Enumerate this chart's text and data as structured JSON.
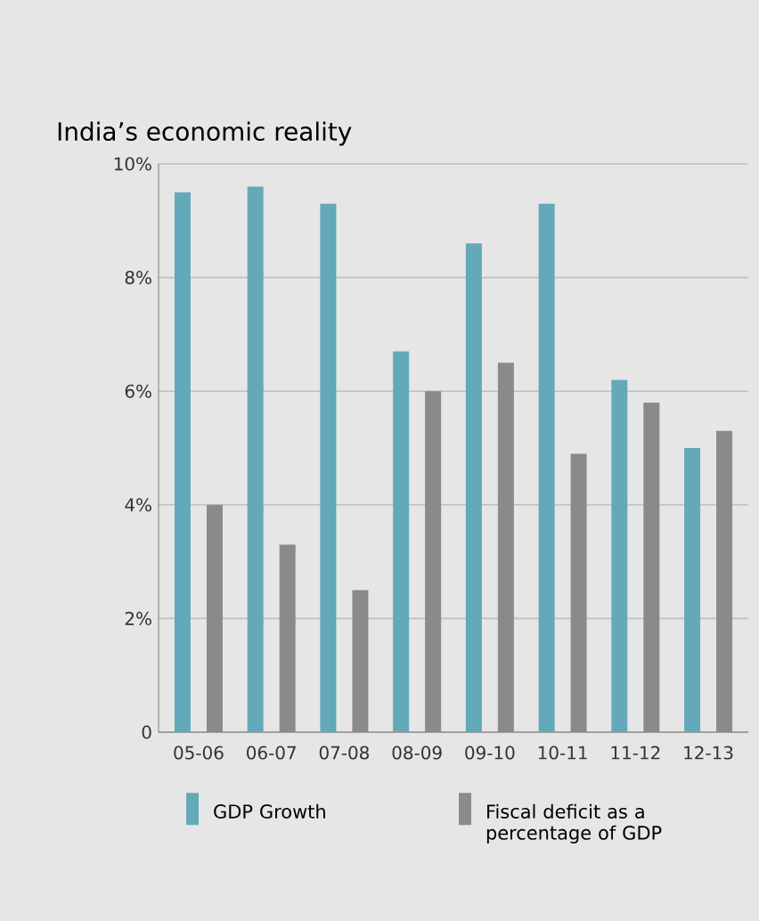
{
  "chart_data": {
    "type": "bar",
    "title": "India’s economic reality",
    "categories": [
      "05-06",
      "06-07",
      "07-08",
      "08-09",
      "09-10",
      "10-11",
      "11-12",
      "12-13"
    ],
    "series": [
      {
        "name": "GDP Growth",
        "color": "#64a9b9",
        "values": [
          9.5,
          9.6,
          9.3,
          6.7,
          8.6,
          9.3,
          6.2,
          5.0
        ]
      },
      {
        "name": "Fiscal deficit as a percentage of GDP",
        "color": "#8a8a8a",
        "values": [
          4.0,
          3.3,
          2.5,
          6.0,
          6.5,
          4.9,
          5.8,
          5.3
        ]
      }
    ],
    "ylim": [
      0,
      10
    ],
    "yticks": [
      0,
      {
        "value": 2,
        "label": "2%"
      },
      {
        "value": 4,
        "label": "4%"
      },
      {
        "value": 6,
        "label": "6%"
      },
      {
        "value": 8,
        "label": "8%"
      },
      {
        "value": 10,
        "label": "10%"
      }
    ],
    "grid": "y",
    "legend": "bottom"
  }
}
